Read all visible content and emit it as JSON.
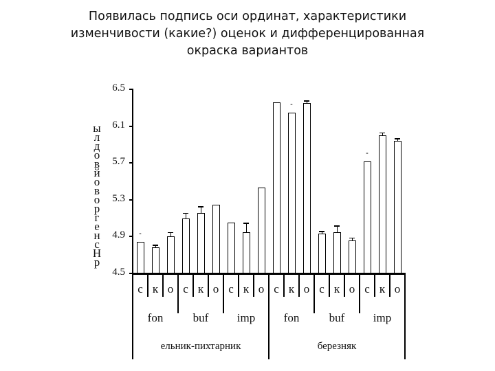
{
  "slide": {
    "title_lines": [
      "Появилась подпись оси ординат, характеристики",
      "изменчивости (какие?) оценок и дифференцированная",
      "окраска вариантов"
    ]
  },
  "colors": {
    "c": "#9b3a0c",
    "k": "#76923c",
    "o": "#f5c000"
  },
  "chart_data": {
    "type": "bar",
    "title": "",
    "ylabel_chars_top_to_bottom": [
      "ы",
      "л",
      "д",
      "о",
      "в",
      "й",
      "о",
      "в",
      "о",
      "р",
      "г",
      "е",
      "н",
      "с",
      "Н",
      "р"
    ],
    "ylabel": "р Н снегровой водлы (vertical, garbled)",
    "xlabel": "",
    "ylim": [
      4.5,
      6.5
    ],
    "yticks": [
      6.5,
      6.1,
      5.7,
      5.3,
      4.9,
      4.5
    ],
    "grid": false,
    "legend": "none",
    "x_levels": {
      "level1": [
        "с",
        "к",
        "о",
        "с",
        "к",
        "о",
        "с",
        "к",
        "о",
        "с",
        "к",
        "о",
        "с",
        "к",
        "о",
        "с",
        "к",
        "о"
      ],
      "level2": [
        "fon",
        "buf",
        "imp",
        "fon",
        "buf",
        "imp"
      ],
      "level3": [
        "ельник-пихтарник",
        "березняк"
      ]
    },
    "series": [
      {
        "name": "с",
        "color": "#9b3a0c",
        "values": [
          4.84,
          5.1,
          5.05,
          6.36,
          4.93,
          5.72
        ]
      },
      {
        "name": "к",
        "color": "#76923c",
        "values": [
          4.78,
          5.16,
          4.95,
          6.25,
          4.95,
          6.0
        ]
      },
      {
        "name": "о",
        "color": "#f5c000",
        "values": [
          4.9,
          5.25,
          5.43,
          6.35,
          4.86,
          5.94
        ]
      }
    ],
    "bars": [
      {
        "group": "ельник-пихтарник",
        "sub": "fon",
        "var": "с",
        "value": 4.84,
        "err": 0.0,
        "sig": true
      },
      {
        "group": "ельник-пихтарник",
        "sub": "fon",
        "var": "к",
        "value": 4.78,
        "err": 0.03,
        "sig": false
      },
      {
        "group": "ельник-пихтарник",
        "sub": "fon",
        "var": "о",
        "value": 4.9,
        "err": 0.05,
        "sig": false
      },
      {
        "group": "ельник-пихтарник",
        "sub": "buf",
        "var": "с",
        "value": 5.1,
        "err": 0.06,
        "sig": false
      },
      {
        "group": "ельник-пихтарник",
        "sub": "buf",
        "var": "к",
        "value": 5.16,
        "err": 0.07,
        "sig": false
      },
      {
        "group": "ельник-пихтарник",
        "sub": "buf",
        "var": "о",
        "value": 5.25,
        "err": 0.0,
        "sig": false
      },
      {
        "group": "ельник-пихтарник",
        "sub": "imp",
        "var": "с",
        "value": 5.05,
        "err": 0.0,
        "sig": false
      },
      {
        "group": "ельник-пихтарник",
        "sub": "imp",
        "var": "к",
        "value": 4.95,
        "err": 0.1,
        "sig": false
      },
      {
        "group": "ельник-пихтарник",
        "sub": "imp",
        "var": "о",
        "value": 5.43,
        "err": 0.0,
        "sig": false
      },
      {
        "group": "березняк",
        "sub": "fon",
        "var": "с",
        "value": 6.36,
        "err": 0.0,
        "sig": false
      },
      {
        "group": "березняк",
        "sub": "fon",
        "var": "к",
        "value": 6.25,
        "err": 0.0,
        "sig": true
      },
      {
        "group": "березняк",
        "sub": "fon",
        "var": "о",
        "value": 6.35,
        "err": 0.03,
        "sig": false
      },
      {
        "group": "березняк",
        "sub": "buf",
        "var": "с",
        "value": 4.93,
        "err": 0.03,
        "sig": false
      },
      {
        "group": "березняк",
        "sub": "buf",
        "var": "к",
        "value": 4.95,
        "err": 0.07,
        "sig": false
      },
      {
        "group": "березняк",
        "sub": "buf",
        "var": "о",
        "value": 4.86,
        "err": 0.03,
        "sig": false
      },
      {
        "group": "березняк",
        "sub": "imp",
        "var": "с",
        "value": 5.72,
        "err": 0.0,
        "sig": true
      },
      {
        "group": "березняк",
        "sub": "imp",
        "var": "к",
        "value": 6.0,
        "err": 0.03,
        "sig": false
      },
      {
        "group": "березняк",
        "sub": "imp",
        "var": "о",
        "value": 5.94,
        "err": 0.03,
        "sig": false
      }
    ]
  }
}
